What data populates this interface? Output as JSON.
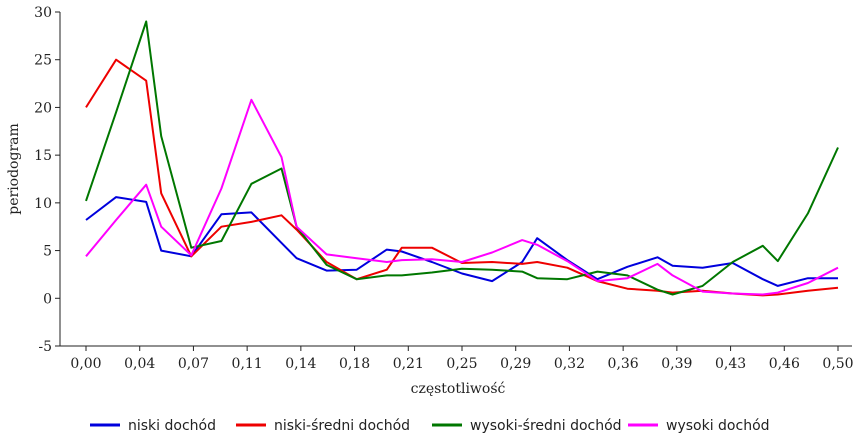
{
  "chart_data": {
    "type": "line",
    "xlabel": "częstotliwość",
    "ylabel": "periodogram",
    "ylim": [
      -5,
      30
    ],
    "yticks": [
      -5,
      0,
      5,
      10,
      15,
      20,
      25,
      30
    ],
    "xticks": [
      "0,00",
      "0,04",
      "0,07",
      "0,11",
      "0,14",
      "0,18",
      "0,21",
      "0,25",
      "0,29",
      "0,32",
      "0,36",
      "0,39",
      "0,43",
      "0,46",
      "0,50"
    ],
    "x": [
      0.0,
      0.02,
      0.04,
      0.05,
      0.07,
      0.09,
      0.11,
      0.13,
      0.14,
      0.16,
      0.18,
      0.2,
      0.21,
      0.23,
      0.25,
      0.27,
      0.29,
      0.3,
      0.32,
      0.34,
      0.36,
      0.38,
      0.39,
      0.41,
      0.43,
      0.45,
      0.46,
      0.48,
      0.5
    ],
    "legend_position": "bottom",
    "series": [
      {
        "name": "niski dochód",
        "color": "#0000dd",
        "values": [
          8.2,
          10.6,
          10.1,
          5.0,
          4.4,
          8.8,
          9.0,
          5.8,
          4.2,
          2.9,
          3.0,
          5.1,
          4.9,
          3.8,
          2.6,
          1.8,
          3.8,
          6.3,
          4.0,
          2.0,
          3.3,
          4.3,
          3.4,
          3.2,
          3.7,
          2.0,
          1.3,
          2.1,
          2.1
        ]
      },
      {
        "name": "niski-średni dochód",
        "color": "#ee0000",
        "values": [
          20.0,
          25.0,
          22.8,
          11.0,
          4.4,
          7.5,
          8.0,
          8.7,
          7.2,
          3.8,
          2.0,
          3.0,
          5.3,
          5.3,
          3.7,
          3.8,
          3.6,
          3.8,
          3.2,
          1.8,
          1.0,
          0.8,
          0.6,
          0.8,
          0.5,
          0.3,
          0.4,
          0.8,
          1.1
        ]
      },
      {
        "name": "wysoki-średni dochód",
        "color": "#007700",
        "values": [
          10.2,
          19.5,
          29.0,
          17.0,
          5.3,
          6.0,
          12.0,
          13.6,
          7.5,
          3.5,
          2.0,
          2.4,
          2.4,
          2.7,
          3.1,
          3.0,
          2.8,
          2.1,
          2.0,
          2.8,
          2.4,
          0.9,
          0.4,
          1.3,
          3.8,
          5.5,
          3.9,
          8.9,
          15.8
        ]
      },
      {
        "name": "wysoki dochód",
        "color": "#ff00ff",
        "values": [
          4.4,
          8.2,
          11.9,
          7.5,
          4.5,
          11.5,
          20.8,
          14.8,
          7.5,
          4.6,
          4.2,
          3.8,
          4.0,
          4.1,
          3.8,
          4.8,
          6.1,
          5.6,
          3.9,
          1.8,
          2.1,
          3.6,
          2.4,
          0.7,
          0.5,
          0.4,
          0.6,
          1.6,
          3.2
        ]
      }
    ]
  }
}
